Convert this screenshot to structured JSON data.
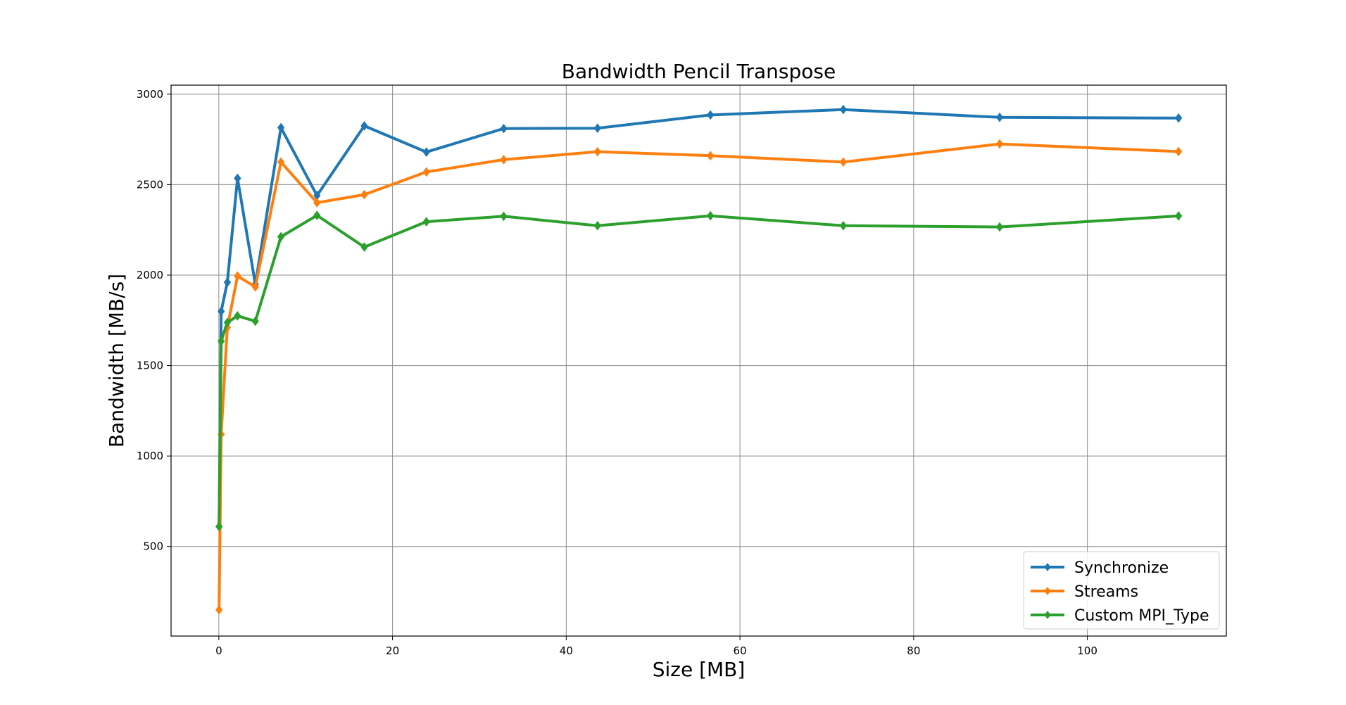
{
  "chart_data": {
    "type": "line",
    "title": "Bandwidth Pencil Transpose",
    "xlabel": "Size [MB]",
    "ylabel": "Bandwidth [MB/s]",
    "xlim": [
      -5.5,
      116
    ],
    "ylim": [
      5,
      3050
    ],
    "xticks": [
      0,
      20,
      40,
      60,
      80,
      100
    ],
    "yticks": [
      500,
      1000,
      1500,
      2000,
      2500,
      3000
    ],
    "grid": true,
    "legend_position": "lower-right",
    "marker": "diamond",
    "series": [
      {
        "name": "Synchronize",
        "color": "#1f77b4",
        "x": [
          0.03,
          0.27,
          0.98,
          2.15,
          4.2,
          7.15,
          11.3,
          16.75,
          23.9,
          32.8,
          43.6,
          56.6,
          71.9,
          89.9,
          110.5
        ],
        "y": [
          610,
          1800,
          1960,
          2535,
          1950,
          2815,
          2440,
          2825,
          2680,
          2810,
          2812,
          2885,
          2915,
          2872,
          2868
        ]
      },
      {
        "name": "Streams",
        "color": "#ff7f0e",
        "x": [
          0.03,
          0.27,
          0.98,
          2.15,
          4.2,
          7.15,
          11.3,
          16.75,
          23.9,
          32.8,
          43.6,
          56.6,
          71.9,
          89.9,
          110.5
        ],
        "y": [
          150,
          1120,
          1710,
          1995,
          1935,
          2625,
          2400,
          2445,
          2570,
          2638,
          2682,
          2660,
          2625,
          2725,
          2683
        ]
      },
      {
        "name": "Custom MPI_Type",
        "color": "#2ca02c",
        "x": [
          0.03,
          0.27,
          0.98,
          2.15,
          4.2,
          7.15,
          11.3,
          16.75,
          23.9,
          32.8,
          43.6,
          56.6,
          71.9,
          89.9,
          110.5
        ],
        "y": [
          610,
          1635,
          1738,
          1775,
          1745,
          2212,
          2330,
          2155,
          2295,
          2325,
          2273,
          2328,
          2273,
          2266,
          2327
        ]
      }
    ]
  }
}
